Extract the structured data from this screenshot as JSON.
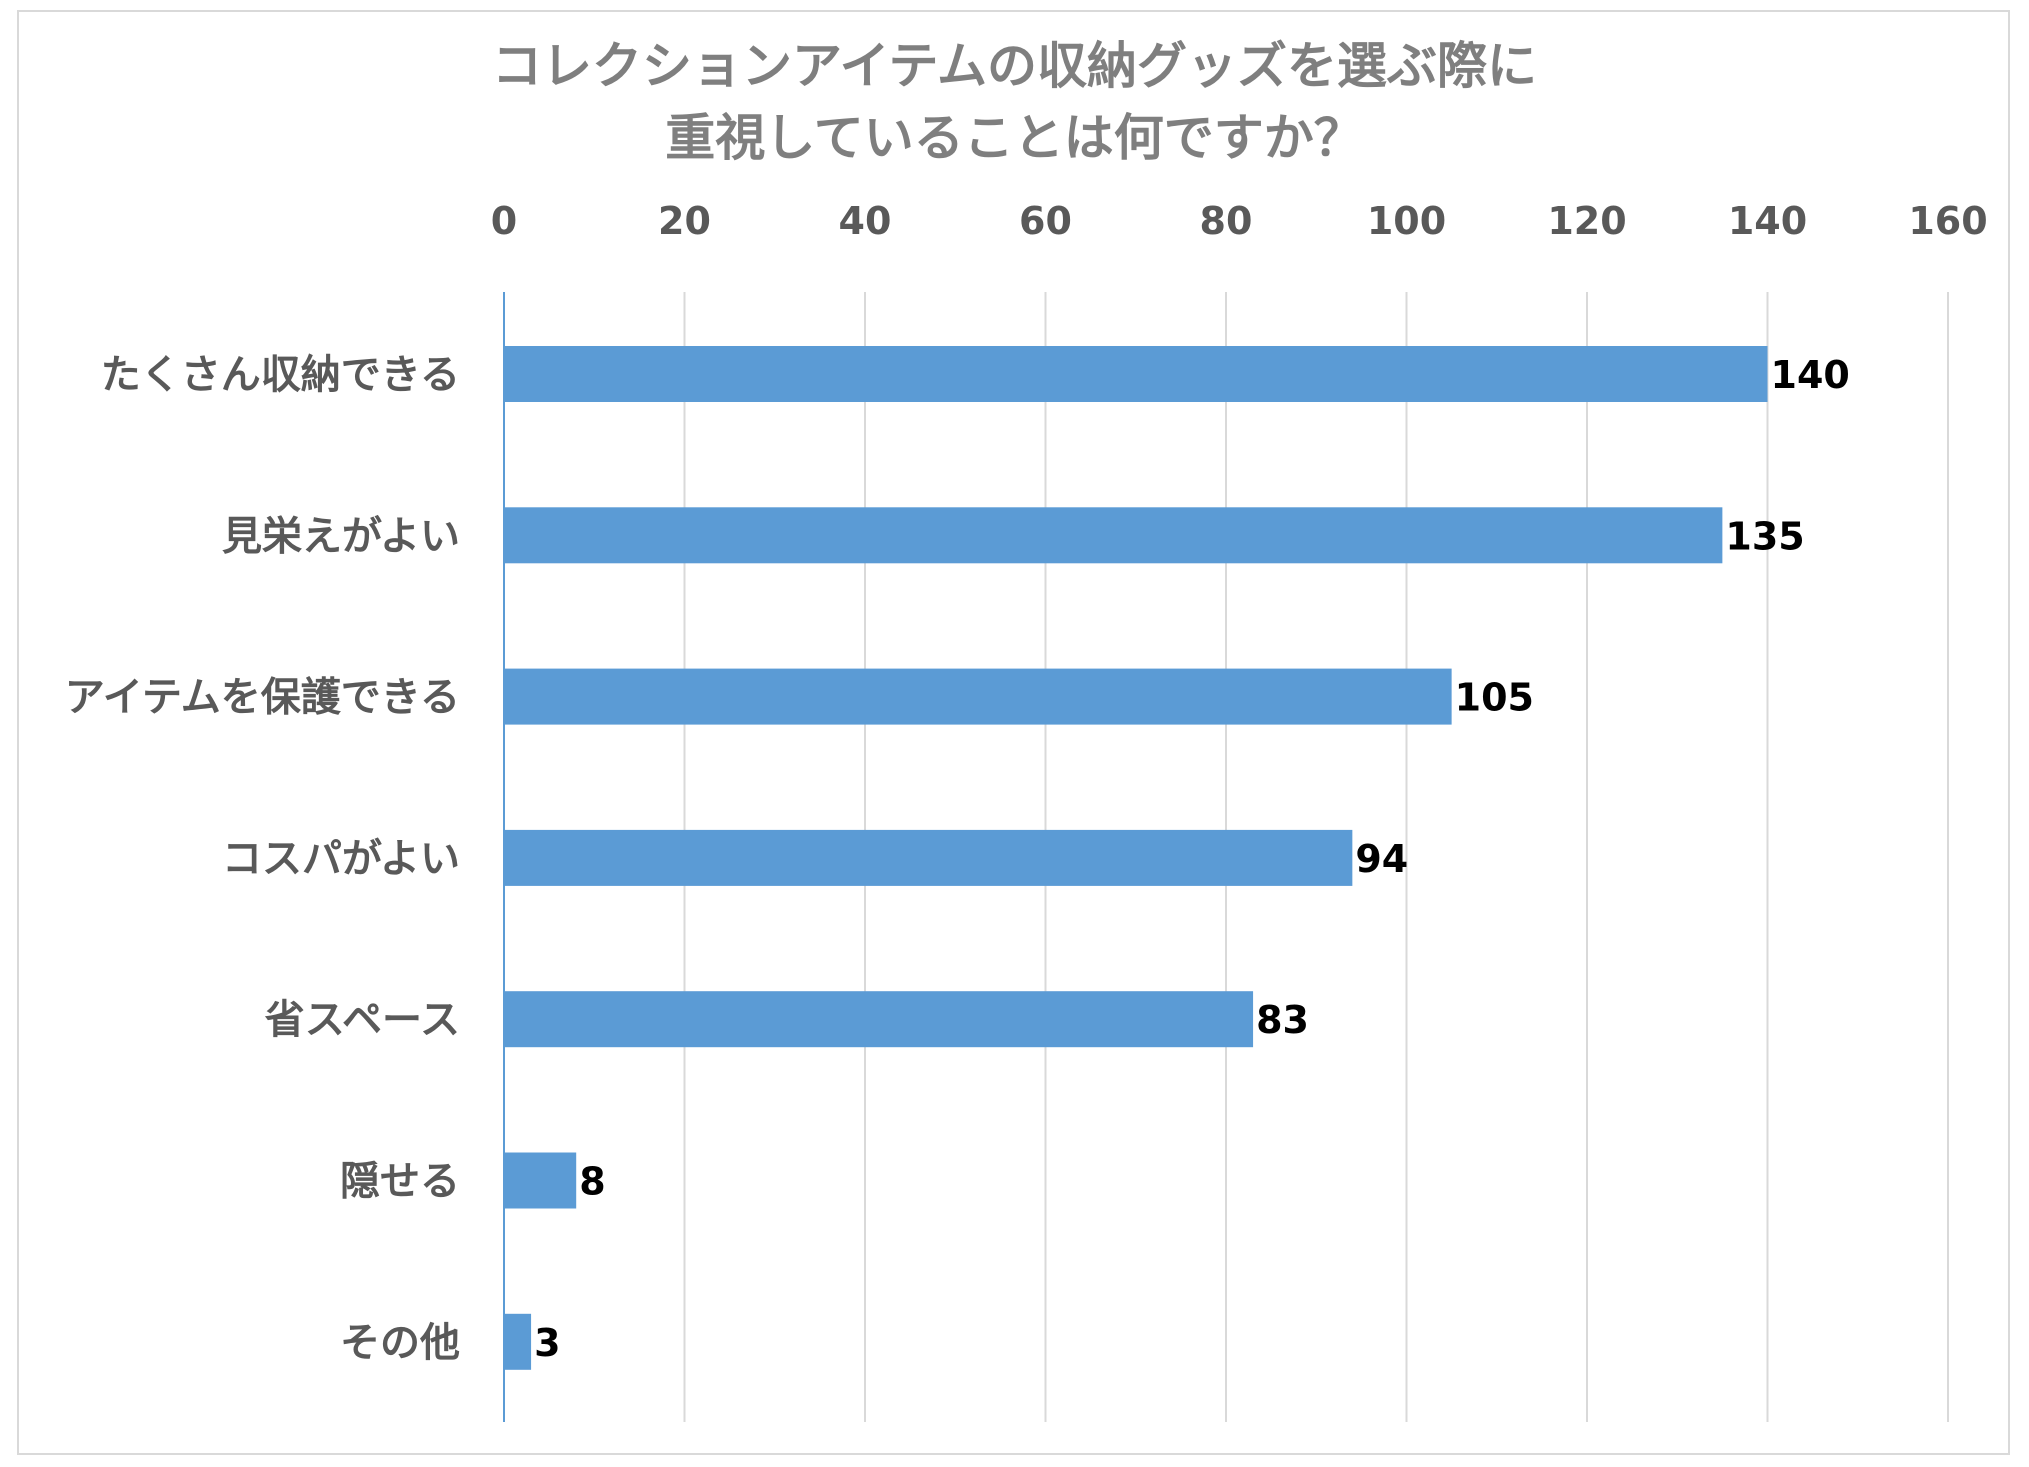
{
  "chart_data": {
    "type": "bar",
    "orientation": "horizontal",
    "title": [
      "コレクションアイテムの収納グッズを選ぶ際に",
      "重視していることは何ですか？"
    ],
    "categories": [
      "たくさん収納できる",
      "見栄えがよい",
      "アイテムを保護できる",
      "コスパがよい",
      "省スペース",
      "隠せる",
      "その他"
    ],
    "values": [
      140,
      135,
      105,
      94,
      83,
      8,
      3
    ],
    "xlim": [
      0,
      160
    ],
    "xticks": [
      0,
      20,
      40,
      60,
      80,
      100,
      120,
      140,
      160
    ],
    "xaxis_position": "top",
    "grid": true,
    "data_labels": true,
    "bar_color": "#5b9bd5",
    "grid_color": "#d9d9d9",
    "axis_color": "#5b9bd5"
  }
}
